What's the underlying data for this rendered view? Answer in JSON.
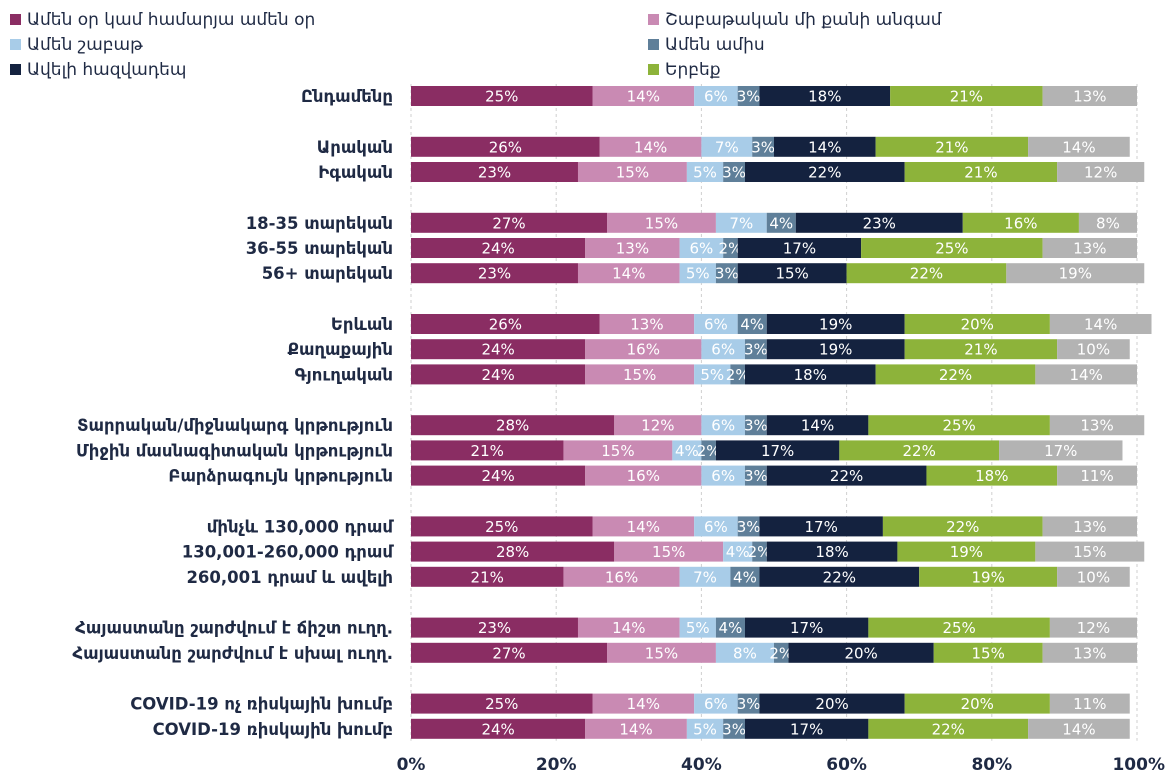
{
  "chart_data": {
    "type": "bar",
    "orientation": "horizontal",
    "stacked": true,
    "xlim": [
      0,
      100
    ],
    "x_ticks": [
      "0%",
      "20%",
      "40%",
      "60%",
      "80%",
      "100%"
    ],
    "grid": true,
    "legend_position": "top",
    "categories": [
      "Ընդամենը",
      "Արական",
      "Իգական",
      "18-35 տարեկան",
      "36-55 տարեկան",
      "56+ տարեկան",
      "Երևան",
      "Քաղաքային",
      "Գյուղական",
      "Տարրական/միջնակարգ կրթություն",
      "Միջին մասնագիտական կրթություն",
      "Բարձրագույն կրթություն",
      "մինչև 130,000 դրամ",
      "130,001-260,000 դրամ",
      "260,001 դրամ և ավելի",
      "Հայաստանը շարժվում է ճիշտ ուղղ.",
      "Հայաստանը շարժվում է սխալ ուղղ.",
      "COVID-19 ոչ ռիսկային խումբ",
      "COVID-19 ռիսկային խումբ"
    ],
    "group_sizes": [
      1,
      2,
      3,
      3,
      3,
      3,
      2,
      2
    ],
    "series": [
      {
        "name": "Ամեն օր կամ համարյա ամեն օր",
        "color": "#8a2d63",
        "values": [
          25,
          26,
          23,
          27,
          24,
          23,
          26,
          24,
          24,
          28,
          21,
          24,
          25,
          28,
          21,
          23,
          27,
          25,
          24
        ]
      },
      {
        "name": "Շաբաթական մի քանի անգամ",
        "color": "#c98ab3",
        "values": [
          14,
          14,
          15,
          15,
          13,
          14,
          13,
          16,
          15,
          12,
          15,
          16,
          14,
          15,
          16,
          14,
          15,
          14,
          14
        ]
      },
      {
        "name": "Ամեն շաբաթ",
        "color": "#a8cce8",
        "values": [
          6,
          7,
          5,
          7,
          6,
          5,
          6,
          6,
          5,
          6,
          4,
          6,
          6,
          4,
          7,
          5,
          8,
          6,
          5
        ]
      },
      {
        "name": "Ամեն ամիս",
        "color": "#5f7f99",
        "values": [
          3,
          3,
          3,
          4,
          2,
          3,
          4,
          3,
          2,
          3,
          2,
          3,
          3,
          2,
          4,
          4,
          2,
          3,
          3
        ]
      },
      {
        "name": "Ավելի հազվադեպ",
        "color": "#14223f",
        "values": [
          18,
          14,
          22,
          23,
          17,
          15,
          19,
          19,
          18,
          14,
          17,
          22,
          17,
          18,
          22,
          17,
          20,
          20,
          17
        ]
      },
      {
        "name": "Երբեք",
        "color": "#8db33a",
        "values": [
          21,
          21,
          21,
          16,
          25,
          22,
          20,
          21,
          22,
          25,
          22,
          18,
          22,
          19,
          19,
          25,
          15,
          20,
          22
        ]
      },
      {
        "name": "",
        "color": "#b3b3b3",
        "values": [
          13,
          14,
          12,
          8,
          13,
          19,
          14,
          10,
          14,
          13,
          17,
          11,
          13,
          15,
          10,
          12,
          13,
          11,
          14
        ]
      }
    ]
  }
}
